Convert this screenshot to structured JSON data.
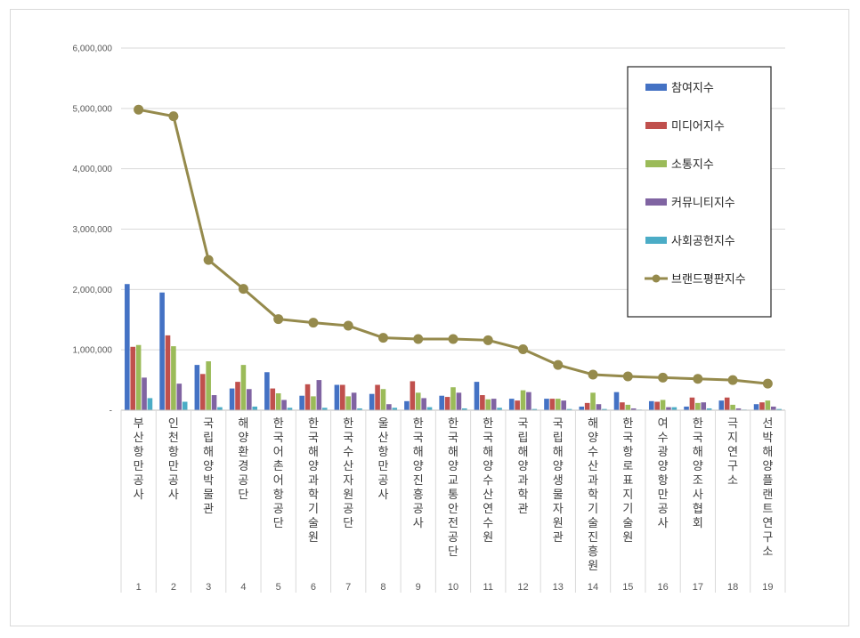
{
  "chart_data": {
    "type": "bar",
    "title": "",
    "xlabel": "",
    "ylabel": "",
    "ylim": [
      0,
      6000000
    ],
    "yticks": [
      "6,000,000",
      "5,000,000",
      "4,000,000",
      "3,000,000",
      "2,000,000",
      "1,000,000",
      "-"
    ],
    "grid": true,
    "legend_position": "top-right",
    "categories": [
      "부산항만공사",
      "인천항만공사",
      "국립해양박물관",
      "해양환경공단",
      "한국어촌어항공단",
      "한국해양과학기술원",
      "한국수산자원공단",
      "울산항만공사",
      "한국해양진흥공사",
      "한국해양교통안전공단",
      "한국해양수산연수원",
      "국립해양과학관",
      "국립해양생물자원관",
      "해양수산과학기술진흥원",
      "한국항로표지기술원",
      "여수광양항만공사",
      "한국해양조사협회",
      "극지연구소",
      "선박해양플랜트연구소"
    ],
    "ranks": [
      "1",
      "2",
      "3",
      "4",
      "5",
      "6",
      "7",
      "8",
      "9",
      "10",
      "11",
      "12",
      "13",
      "14",
      "15",
      "16",
      "17",
      "18",
      "19"
    ],
    "series": [
      {
        "name": "참여지수",
        "kind": "bar",
        "color": "#4472c4",
        "values": [
          2090000,
          1950000,
          750000,
          360000,
          630000,
          240000,
          420000,
          270000,
          150000,
          240000,
          470000,
          190000,
          190000,
          60000,
          300000,
          150000,
          60000,
          160000,
          100000
        ]
      },
      {
        "name": "미디어지수",
        "kind": "bar",
        "color": "#c0504d",
        "values": [
          1050000,
          1240000,
          600000,
          470000,
          360000,
          430000,
          420000,
          420000,
          480000,
          220000,
          250000,
          160000,
          190000,
          120000,
          130000,
          140000,
          210000,
          210000,
          130000
        ]
      },
      {
        "name": "소통지수",
        "kind": "bar",
        "color": "#9bbb59",
        "values": [
          1080000,
          1060000,
          810000,
          750000,
          280000,
          230000,
          230000,
          350000,
          290000,
          380000,
          180000,
          330000,
          190000,
          290000,
          90000,
          170000,
          120000,
          90000,
          160000
        ]
      },
      {
        "name": "커뮤니티지수",
        "kind": "bar",
        "color": "#8064a2",
        "values": [
          540000,
          440000,
          250000,
          350000,
          170000,
          500000,
          290000,
          100000,
          200000,
          290000,
          190000,
          300000,
          160000,
          100000,
          30000,
          50000,
          130000,
          30000,
          60000
        ]
      },
      {
        "name": "사회공헌지수",
        "kind": "bar",
        "color": "#4bacc6",
        "values": [
          200000,
          140000,
          50000,
          60000,
          40000,
          40000,
          30000,
          40000,
          50000,
          30000,
          40000,
          20000,
          20000,
          20000,
          10000,
          50000,
          30000,
          10000,
          20000
        ]
      },
      {
        "name": "브랜드평판지수",
        "kind": "line",
        "color": "#958a4c",
        "values": [
          4980000,
          4870000,
          2490000,
          2010000,
          1510000,
          1450000,
          1400000,
          1200000,
          1180000,
          1180000,
          1160000,
          1010000,
          750000,
          590000,
          560000,
          540000,
          520000,
          500000,
          440000
        ]
      }
    ]
  }
}
